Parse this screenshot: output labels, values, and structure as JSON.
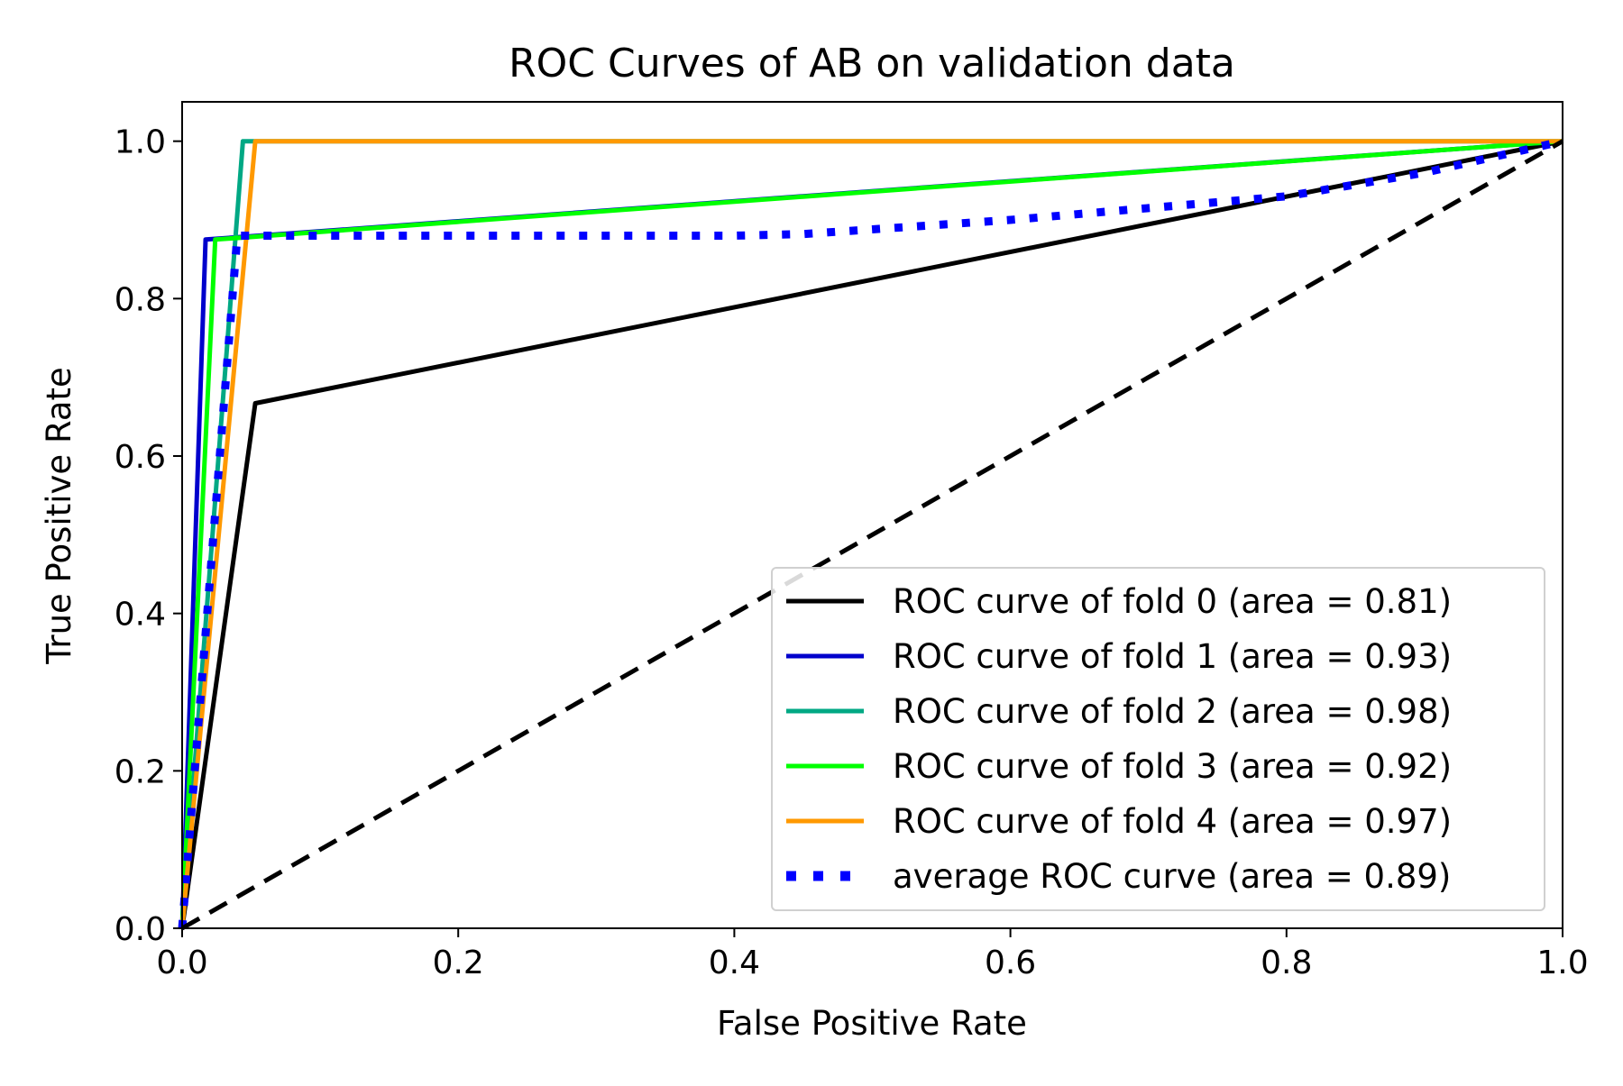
{
  "chart_data": {
    "type": "line",
    "title": "ROC Curves of AB on validation data",
    "xlabel": "False Positive Rate",
    "ylabel": "True Positive Rate",
    "xlim": [
      0.0,
      1.0
    ],
    "ylim": [
      0.0,
      1.05
    ],
    "xticks": [
      0.0,
      0.2,
      0.4,
      0.6,
      0.8,
      1.0
    ],
    "yticks": [
      0.0,
      0.2,
      0.4,
      0.6,
      0.8,
      1.0
    ],
    "xtick_labels": [
      "0.0",
      "0.2",
      "0.4",
      "0.6",
      "0.8",
      "1.0"
    ],
    "ytick_labels": [
      "0.0",
      "0.2",
      "0.4",
      "0.6",
      "0.8",
      "1.0"
    ],
    "grid": false,
    "legend_position": "lower-right",
    "series": [
      {
        "name": "ROC curve of fold 0 (area = 0.81)",
        "color": "#000000",
        "style": "solid",
        "x": [
          0.0,
          0.053,
          1.0
        ],
        "y": [
          0.0,
          0.667,
          1.0
        ]
      },
      {
        "name": "ROC curve of fold 1 (area = 0.93)",
        "color": "#0000cc",
        "style": "solid",
        "x": [
          0.0,
          0.017,
          1.0
        ],
        "y": [
          0.0,
          0.875,
          1.0
        ]
      },
      {
        "name": "ROC curve of fold 2 (area = 0.98)",
        "color": "#00a884",
        "style": "solid",
        "x": [
          0.0,
          0.044,
          1.0
        ],
        "y": [
          0.0,
          1.0,
          1.0
        ]
      },
      {
        "name": "ROC curve of fold 3 (area = 0.92)",
        "color": "#00ff00",
        "style": "solid",
        "x": [
          0.0,
          0.024,
          1.0
        ],
        "y": [
          0.0,
          0.875,
          1.0
        ]
      },
      {
        "name": "ROC curve of fold 4 (area = 0.97)",
        "color": "#ff9900",
        "style": "solid",
        "x": [
          0.0,
          0.053,
          1.0
        ],
        "y": [
          0.0,
          1.0,
          1.0
        ]
      },
      {
        "name": "average ROC curve (area = 0.89)",
        "color": "#0000ff",
        "style": "dotted",
        "x": [
          0.0,
          0.04,
          0.08,
          0.2,
          0.3,
          0.4,
          0.45,
          0.5,
          0.6,
          0.7,
          0.8,
          0.9,
          1.0
        ],
        "y": [
          0.0,
          0.88,
          0.88,
          0.88,
          0.88,
          0.88,
          0.882,
          0.888,
          0.9,
          0.915,
          0.93,
          0.96,
          1.0
        ]
      },
      {
        "name": "",
        "color": "#000000",
        "style": "dashed",
        "x": [
          0.0,
          1.0
        ],
        "y": [
          0.0,
          1.0
        ]
      }
    ]
  }
}
